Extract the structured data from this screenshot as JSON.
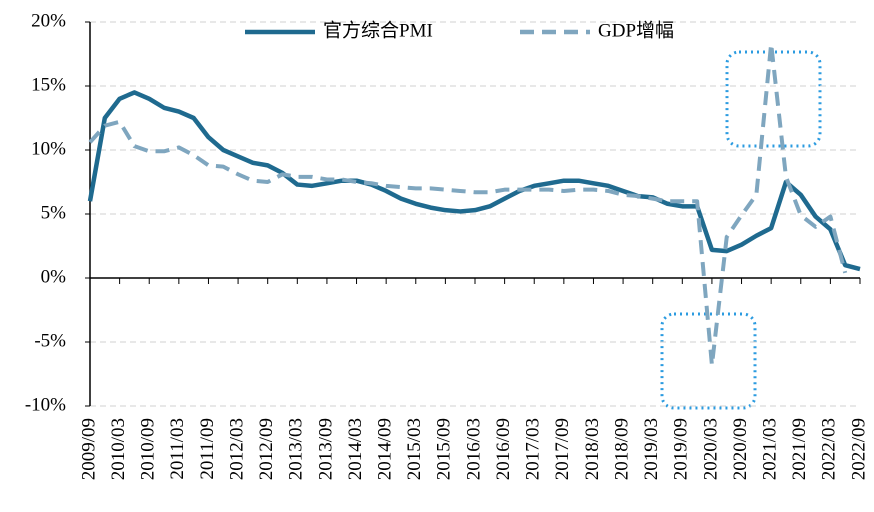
{
  "chart_data": {
    "type": "line",
    "categories": [
      "2009/09",
      null,
      "2010/03",
      null,
      "2010/09",
      null,
      "2011/03",
      null,
      "2011/09",
      null,
      "2012/03",
      null,
      "2012/09",
      null,
      "2013/03",
      null,
      "2013/09",
      null,
      "2014/03",
      null,
      "2014/09",
      null,
      "2015/03",
      null,
      "2015/09",
      null,
      "2016/03",
      null,
      "2016/09",
      null,
      "2017/03",
      null,
      "2017/09",
      null,
      "2018/03",
      null,
      "2018/09",
      null,
      "2019/03",
      null,
      "2019/09",
      null,
      "2020/03",
      null,
      "2020/09",
      null,
      "2021/03",
      null,
      "2021/09",
      null,
      "2022/03",
      null,
      "2022/09"
    ],
    "series": [
      {
        "name": "官方综合PMI",
        "color": "#1f6a8f",
        "dash": false,
        "values": [
          6,
          12.5,
          14,
          14.5,
          14,
          13.3,
          13,
          12.5,
          11,
          10,
          9.5,
          9,
          8.8,
          8.2,
          7.3,
          7.2,
          7.4,
          7.6,
          7.6,
          7.3,
          6.8,
          6.2,
          5.8,
          5.5,
          5.3,
          5.2,
          5.3,
          5.6,
          6.2,
          6.8,
          7.2,
          7.4,
          7.6,
          7.6,
          7.4,
          7.2,
          6.8,
          6.4,
          6.3,
          5.8,
          5.6,
          5.6,
          2.2,
          2.1,
          2.6,
          3.3,
          3.9,
          7.5,
          6.5,
          4.8,
          3.8,
          1.0,
          0.7
        ]
      },
      {
        "name": "GDP增幅",
        "color": "#7fa6bf",
        "dash": true,
        "values": [
          10.6,
          11.9,
          12.2,
          10.3,
          9.9,
          9.9,
          10.2,
          9.6,
          8.8,
          8.7,
          8.1,
          7.6,
          7.5,
          8.1,
          7.9,
          7.9,
          7.7,
          7.7,
          7.5,
          7.4,
          7.2,
          7.1,
          7.0,
          7.0,
          6.9,
          6.8,
          6.7,
          6.7,
          6.9,
          6.9,
          6.9,
          6.9,
          6.8,
          6.9,
          6.9,
          6.8,
          6.5,
          6.4,
          6.2,
          6.0,
          6.0,
          6.0,
          -6.8,
          3.2,
          4.9,
          6.5,
          18.3,
          7.9,
          4.9,
          4.0,
          4.8,
          0.4,
          null
        ]
      }
    ],
    "ylim": [
      -10,
      20
    ],
    "yticks": [
      {
        "value": -10,
        "label": "-10%"
      },
      {
        "value": -5,
        "label": "-5%"
      },
      {
        "value": 0,
        "label": "0%"
      },
      {
        "value": 5,
        "label": "5%"
      },
      {
        "value": 10,
        "label": "10%"
      },
      {
        "value": 15,
        "label": "15%"
      },
      {
        "value": 20,
        "label": "20%"
      }
    ],
    "grid": true,
    "legend": "top"
  }
}
